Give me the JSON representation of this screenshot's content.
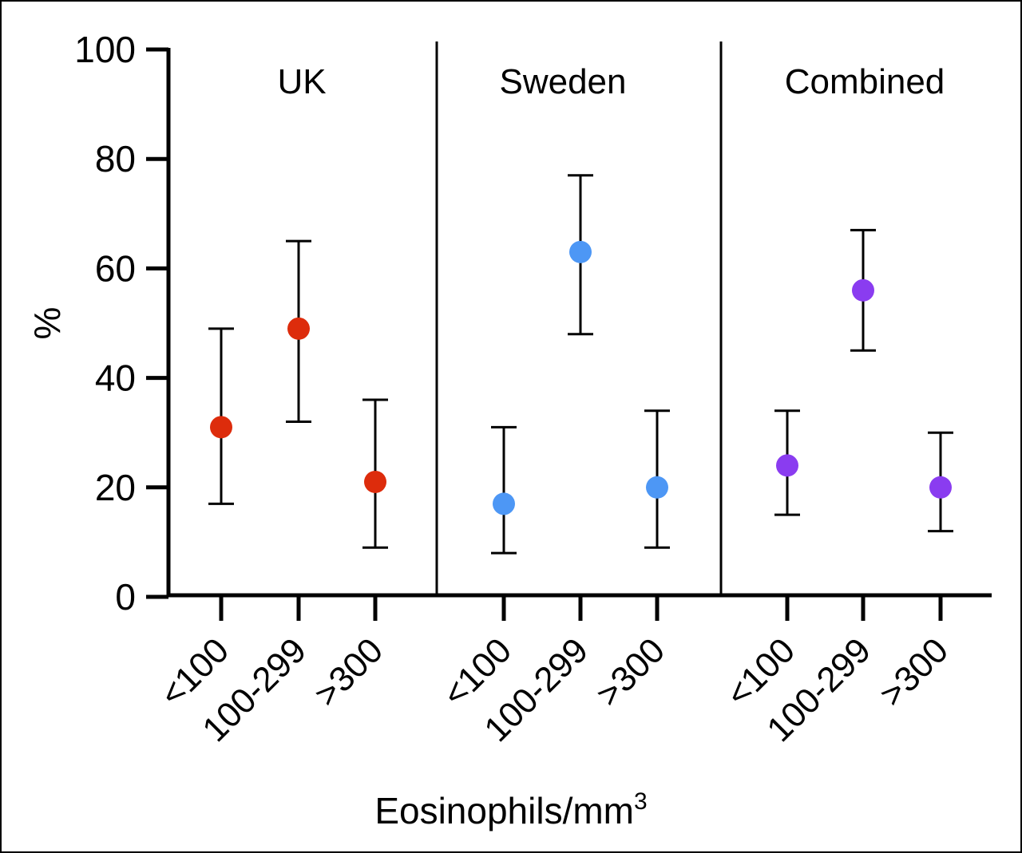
{
  "chart_data": {
    "type": "scatter",
    "ylabel": "%",
    "xlabel": "Eosinophils/mm",
    "xlabel_superscript": "3",
    "ylim": [
      0,
      100
    ],
    "yticks": [
      "0",
      "20",
      "40",
      "60",
      "80",
      "100"
    ],
    "categories": [
      "<100",
      "100-299",
      ">300"
    ],
    "grid": false,
    "legend": "none",
    "panels": [
      {
        "name": "UK",
        "color": "#dd2c0c",
        "points": [
          {
            "category": "<100",
            "value": 31,
            "lower": 17,
            "upper": 49
          },
          {
            "category": "100-299",
            "value": 49,
            "lower": 32,
            "upper": 65
          },
          {
            "category": ">300",
            "value": 21,
            "lower": 9,
            "upper": 36
          }
        ]
      },
      {
        "name": "Sweden",
        "color": "#4d97f5",
        "points": [
          {
            "category": "<100",
            "value": 17,
            "lower": 8,
            "upper": 31
          },
          {
            "category": "100-299",
            "value": 63,
            "lower": 48,
            "upper": 77
          },
          {
            "category": ">300",
            "value": 20,
            "lower": 9,
            "upper": 34
          }
        ]
      },
      {
        "name": "Combined",
        "color": "#8a3cf0",
        "points": [
          {
            "category": "<100",
            "value": 24,
            "lower": 15,
            "upper": 34
          },
          {
            "category": "100-299",
            "value": 56,
            "lower": 45,
            "upper": 67
          },
          {
            "category": ">300",
            "value": 20,
            "lower": 12,
            "upper": 30
          }
        ]
      }
    ]
  }
}
